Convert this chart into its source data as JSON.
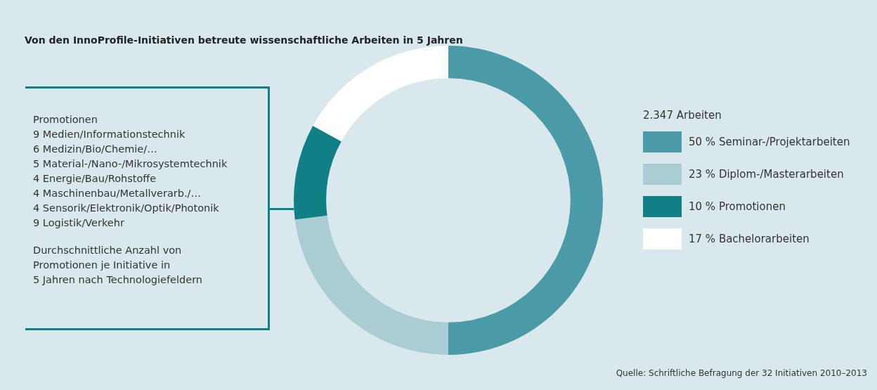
{
  "chart_data": {
    "type": "donut",
    "title": "Von den InnoProfile-Initiativen betreute wissenschaftliche Arbeiten in 5 Jahren",
    "categories": [
      "50 % Seminar-/Projektarbeiten",
      "23 % Diplom-/Masterarbeiten",
      "10 % Promotionen",
      "17 % Bachelorarbeiten"
    ],
    "values": [
      50,
      23,
      10,
      17
    ],
    "colors": [
      "#4a9aa8",
      "#a9cdd3",
      "#117f86",
      "#ffffff"
    ],
    "legend_title": "2.347 Arbeiten",
    "legend": "right",
    "annotations": [
      "Promotionen\n9 Medien/Informationstechnik\n6 Medizin/Bio/Chemie/…\n5 Material-/Nano-/Mikrosystemtechnik\n4 Energie/Bau/Rohstoffe\n4 Maschinenbau/Metallverarb./…\n4 Sensorik/Elektronik/Optik/Photonik\n9 Logistik/Verkehr",
      "Durchschnittliche Anzahl von\nPromotionen je Initiative in\n5 Jahren nach Technologiefeldern",
      "Quelle: Schriftliche Befragung der 32 Initiativen 2010–2013"
    ]
  }
}
